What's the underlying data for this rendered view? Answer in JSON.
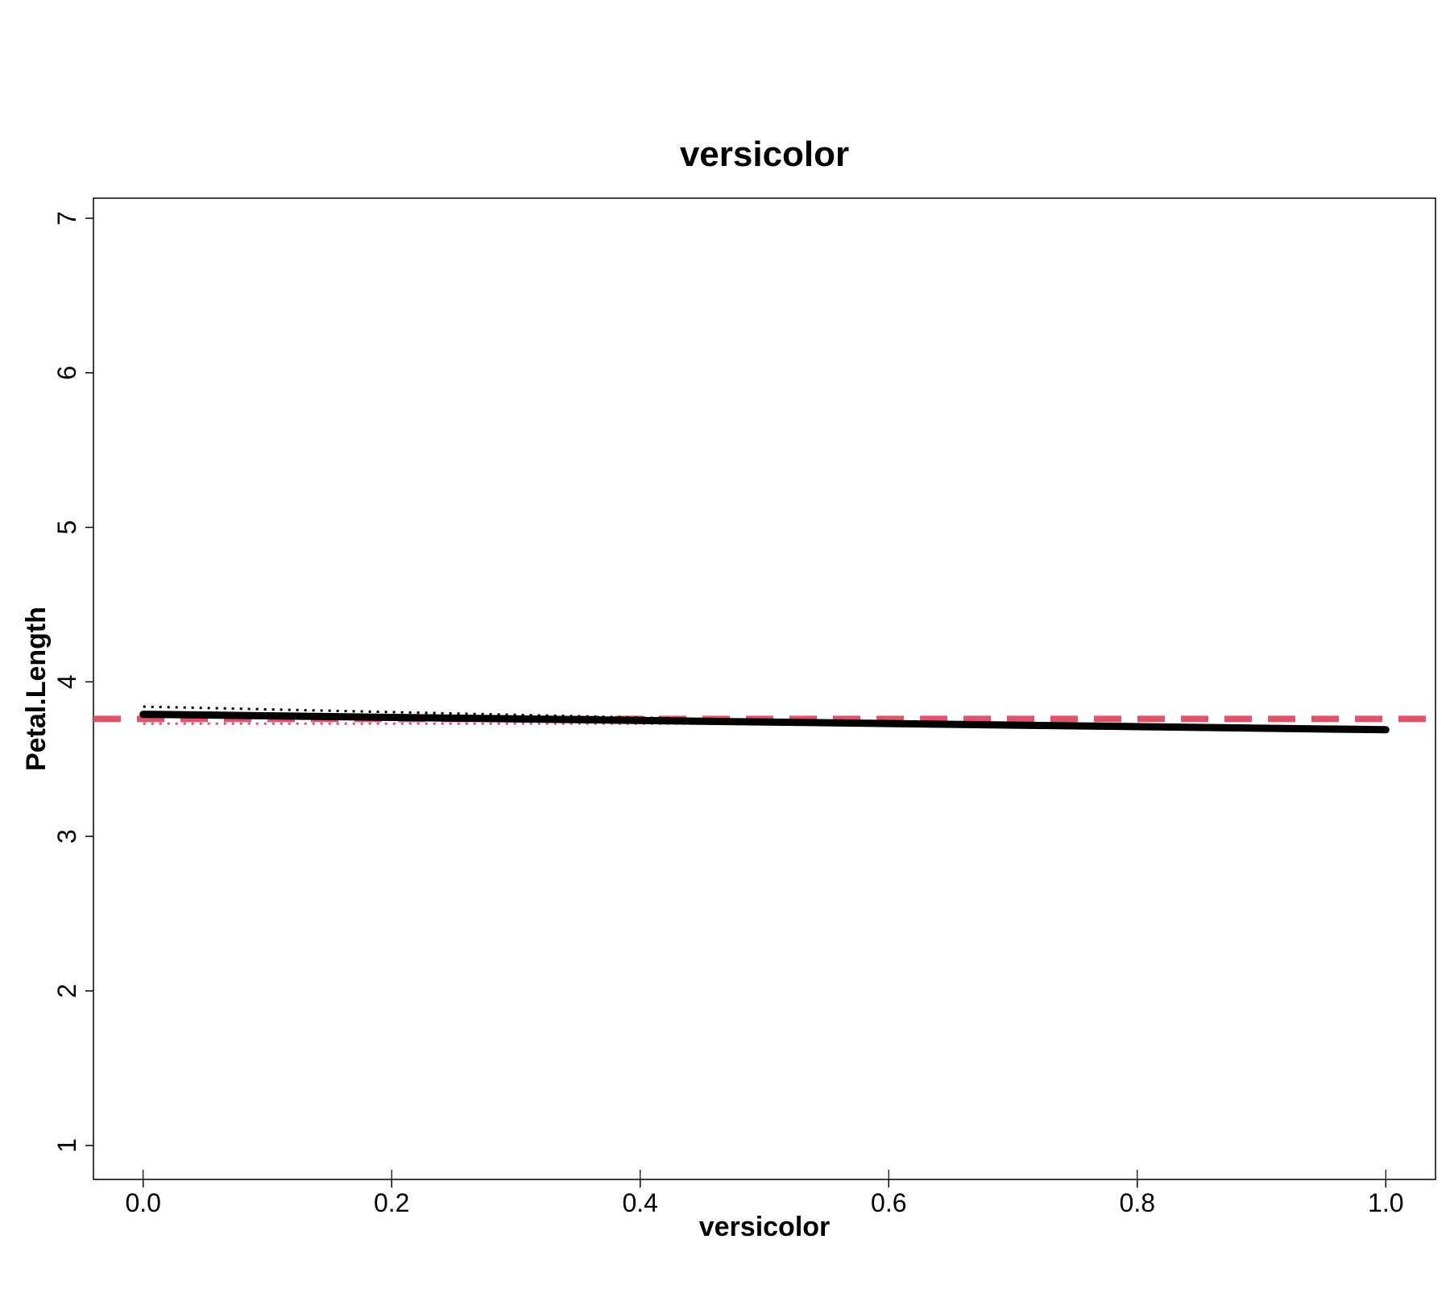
{
  "chart_data": {
    "type": "line",
    "title": "versicolor",
    "xlabel": "versicolor",
    "ylabel": "Petal.Length",
    "xlim": [
      -0.04,
      1.04
    ],
    "ylim": [
      0.78,
      7.13
    ],
    "x_ticks": [
      0.0,
      0.2,
      0.4,
      0.6,
      0.8,
      1.0
    ],
    "x_tick_labels": [
      "0.0",
      "0.2",
      "0.4",
      "0.6",
      "0.8",
      "1.0"
    ],
    "y_ticks": [
      1,
      2,
      3,
      4,
      5,
      6,
      7
    ],
    "y_tick_labels": [
      "1",
      "2",
      "3",
      "4",
      "5",
      "6",
      "7"
    ],
    "grid": false,
    "legend": "none",
    "series": [
      {
        "style": "solid",
        "color": "#000000",
        "x": [
          0.0,
          1.0
        ],
        "y": [
          3.79,
          3.69
        ]
      },
      {
        "style": "dotted",
        "color": "#000000",
        "x": [
          0.0,
          0.45
        ],
        "y": [
          3.84,
          3.76
        ]
      },
      {
        "style": "dotted",
        "color": "#DF536B",
        "x": [
          0.0,
          0.5
        ],
        "y": [
          3.73,
          3.73
        ]
      },
      {
        "style": "dashed",
        "color": "#DF536B",
        "x": [
          -0.04,
          1.04
        ],
        "y": [
          3.76,
          3.76
        ]
      }
    ],
    "rug_x": [
      0.0,
      0.2,
      0.4,
      0.6,
      0.8,
      1.0
    ]
  },
  "colors": {
    "foreground": "#000000",
    "accent": "#DF536B",
    "background": "#FFFFFF"
  }
}
